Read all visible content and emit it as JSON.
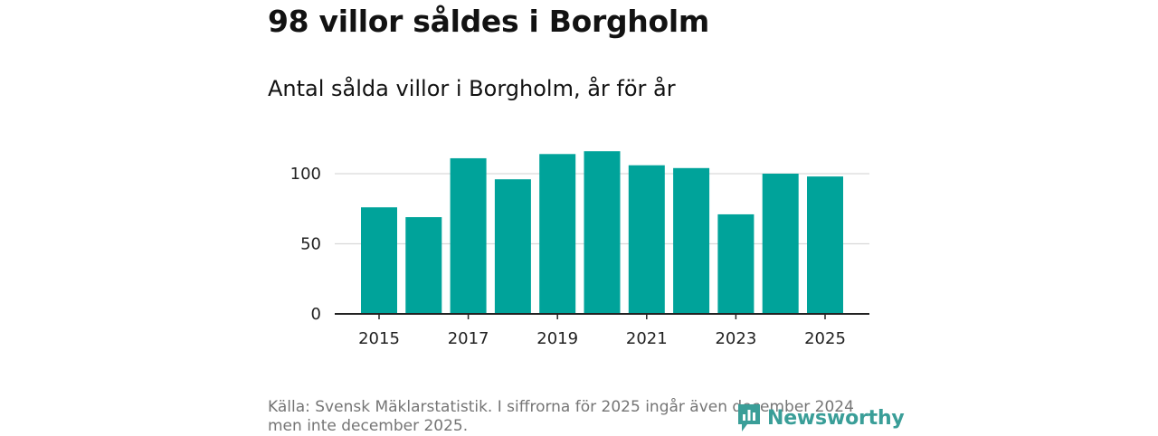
{
  "header": {
    "title": "98 villor såldes i Borgholm",
    "subtitle": "Antal sålda villor i Borgholm, år för år"
  },
  "footer": {
    "source_line1": "Källa: Svensk Mäklarstatistik. I siffrorna för 2025 ingår även december 2024",
    "source_line2": "men inte december 2025."
  },
  "brand": {
    "name": "Newsworthy",
    "icon": "newsworthy-logo-icon",
    "color": "#3a9e98"
  },
  "chart_data": {
    "type": "bar",
    "categories": [
      "2015",
      "2016",
      "2017",
      "2018",
      "2019",
      "2020",
      "2021",
      "2022",
      "2023",
      "2024",
      "2025"
    ],
    "values": [
      76,
      69,
      111,
      96,
      114,
      116,
      106,
      104,
      71,
      100,
      98
    ],
    "x_tick_labels": [
      "2015",
      "2017",
      "2019",
      "2021",
      "2023",
      "2025"
    ],
    "y_ticks": [
      0,
      50,
      100
    ],
    "ylim": [
      0,
      125
    ],
    "bar_color": "#00a39a",
    "grid": true,
    "xlabel": "",
    "ylabel": ""
  }
}
